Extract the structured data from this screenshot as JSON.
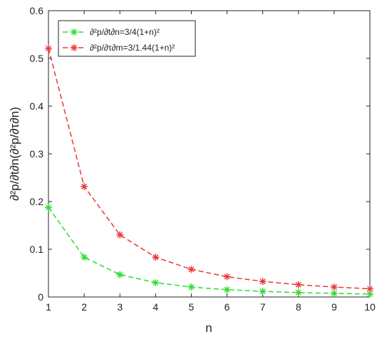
{
  "chart_data": {
    "type": "line",
    "title": "",
    "xlabel": "n",
    "ylabel": "∂²p/∂t∂n(∂²p/∂τ∂n)",
    "xlim": [
      1,
      10
    ],
    "ylim": [
      0,
      0.6
    ],
    "xticks": [
      "1",
      "2",
      "3",
      "4",
      "5",
      "6",
      "7",
      "8",
      "9",
      "10"
    ],
    "yticks": [
      "0",
      "0.1",
      "0.2",
      "0.3",
      "0.4",
      "0.5",
      "0.6"
    ],
    "grid": false,
    "legend_position": "top-left",
    "x": [
      1,
      2,
      3,
      4,
      5,
      6,
      7,
      8,
      9,
      10
    ],
    "series": [
      {
        "name": "∂²p/∂t∂n=3/4(1+n)²",
        "color": "#2edc2e",
        "line_style": "dashed",
        "marker": "asterisk",
        "values": [
          0.1875,
          0.0833,
          0.0469,
          0.03,
          0.0208,
          0.0153,
          0.0117,
          0.0093,
          0.0075,
          0.0062
        ]
      },
      {
        "name": "∂²p/∂τ∂m=3/1.44(1+n)²",
        "color": "#e8383a",
        "line_style": "dashed",
        "marker": "asterisk",
        "values": [
          0.5208,
          0.2315,
          0.1302,
          0.0833,
          0.0579,
          0.0425,
          0.0326,
          0.0257,
          0.0208,
          0.0172
        ]
      }
    ]
  }
}
